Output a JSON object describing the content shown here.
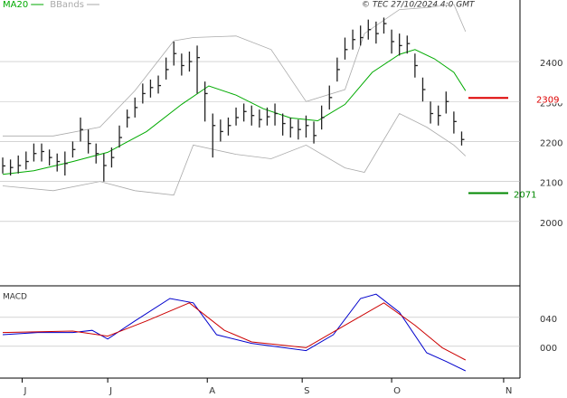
{
  "chart_data": [
    {
      "type": "ohlc",
      "credit": "© TEC 27/10/2024 4:0 GMT",
      "legend": [
        {
          "name": "MA20",
          "color": "#00aa00"
        },
        {
          "name": "BBands",
          "color": "#aaaaaa"
        }
      ],
      "color": "#222222",
      "x": [
        0,
        2,
        4,
        6,
        8,
        10,
        12,
        14,
        16,
        18,
        20,
        22,
        24,
        26,
        28,
        30,
        32,
        34,
        36,
        38,
        40,
        42,
        44,
        46,
        48,
        50,
        52,
        54,
        56,
        58,
        60,
        62,
        64,
        66,
        68,
        70,
        72,
        74,
        76,
        78,
        80,
        82,
        84,
        86,
        88,
        90,
        92,
        94,
        96,
        98,
        100,
        102,
        104,
        106,
        108,
        110,
        112,
        114,
        116,
        118
      ],
      "high": [
        2160,
        2155,
        2165,
        2175,
        2195,
        2195,
        2180,
        2170,
        2175,
        2200,
        2260,
        2230,
        2195,
        2170,
        2185,
        2240,
        2280,
        2310,
        2345,
        2355,
        2365,
        2410,
        2450,
        2420,
        2425,
        2440,
        2350,
        2270,
        2255,
        2260,
        2285,
        2295,
        2290,
        2280,
        2285,
        2295,
        2270,
        2260,
        2255,
        2265,
        2250,
        2290,
        2340,
        2410,
        2460,
        2480,
        2490,
        2505,
        2500,
        2510,
        2480,
        2470,
        2465,
        2420,
        2360,
        2300,
        2290,
        2325,
        2275,
        2225
      ],
      "low": [
        2120,
        2115,
        2120,
        2130,
        2150,
        2150,
        2140,
        2125,
        2115,
        2160,
        2200,
        2170,
        2145,
        2100,
        2135,
        2185,
        2235,
        2260,
        2295,
        2310,
        2320,
        2355,
        2390,
        2365,
        2375,
        2320,
        2250,
        2160,
        2200,
        2215,
        2240,
        2250,
        2240,
        2235,
        2240,
        2240,
        2215,
        2210,
        2205,
        2210,
        2195,
        2230,
        2280,
        2350,
        2405,
        2430,
        2440,
        2455,
        2445,
        2470,
        2420,
        2415,
        2420,
        2360,
        2300,
        2245,
        2240,
        2270,
        2220,
        2190
      ],
      "close": [
        2139,
        2135,
        2140,
        2150,
        2170,
        2175,
        2160,
        2150,
        2145,
        2180,
        2230,
        2195,
        2170,
        2140,
        2160,
        2210,
        2260,
        2285,
        2320,
        2335,
        2340,
        2380,
        2420,
        2390,
        2400,
        2410,
        2320,
        2240,
        2225,
        2240,
        2260,
        2275,
        2265,
        2255,
        2262,
        2270,
        2245,
        2235,
        2230,
        2240,
        2215,
        2260,
        2310,
        2380,
        2430,
        2455,
        2460,
        2480,
        2470,
        2495,
        2450,
        2440,
        2445,
        2390,
        2330,
        2270,
        2265,
        2300,
        2250,
        2205
      ],
      "ma": {
        "x": [
          0,
          8,
          18,
          27,
          37,
          46,
          53,
          60,
          67,
          74,
          81,
          88,
          95,
          102,
          106,
          111,
          116,
          119
        ],
        "values": [
          2118,
          2127,
          2150,
          2173,
          2225,
          2293,
          2339,
          2316,
          2282,
          2259,
          2252,
          2293,
          2373,
          2418,
          2430,
          2407,
          2373,
          2327
        ]
      },
      "bands": {
        "x": [
          0,
          13,
          25,
          34,
          44,
          49,
          60,
          69,
          78,
          88,
          93,
          102,
          109,
          116,
          119
        ],
        "upper": [
          2214,
          2214,
          2236,
          2327,
          2452,
          2460,
          2464,
          2430,
          2300,
          2330,
          2470,
          2530,
          2535,
          2543,
          2475
        ],
        "lower": [
          2089,
          2077,
          2100,
          2077,
          2066,
          2191,
          2168,
          2157,
          2191,
          2134,
          2123,
          2270,
          2236,
          2191,
          2164
        ]
      },
      "levels": [
        {
          "value": 2309,
          "color": "#dd0000"
        },
        {
          "value": 2071,
          "color": "#008800"
        }
      ],
      "xlim": [
        -0.7,
        133
      ],
      "xticks": [
        {
          "value": 5,
          "label": "J"
        },
        {
          "value": 27,
          "label": "J"
        },
        {
          "value": 52.6,
          "label": "A"
        },
        {
          "value": 77,
          "label": "S"
        },
        {
          "value": 100,
          "label": "O"
        },
        {
          "value": 128.8,
          "label": "N"
        }
      ],
      "ylim": [
        1839,
        2554
      ],
      "yticks": [
        2000,
        2100,
        2200,
        2300,
        2400
      ],
      "grid": true
    },
    {
      "type": "macd",
      "title": "MACD",
      "series": [
        {
          "color": "#0000cc",
          "x": [
            0,
            9,
            18,
            23,
            27,
            34,
            43,
            49,
            55,
            64,
            78,
            85,
            92,
            96,
            102,
            109,
            114,
            119
          ],
          "values": [
            16,
            19,
            19,
            22,
            10,
            35,
            66,
            60,
            16,
            4,
            -6,
            16,
            66,
            72,
            47,
            -9,
            -21,
            -34
          ]
        },
        {
          "color": "#cc0000",
          "x": [
            0,
            18,
            27,
            37,
            48,
            57,
            64,
            78,
            88,
            98,
            106,
            113,
            119
          ],
          "values": [
            19,
            21,
            14,
            35,
            60,
            22,
            6,
            -2,
            29,
            60,
            29,
            -2,
            -19
          ]
        }
      ],
      "ylim": [
        -44,
        81
      ],
      "yticks": [
        {
          "value": 40,
          "label": "040"
        },
        {
          "value": 0,
          "label": "000"
        }
      ],
      "grid": true
    }
  ]
}
